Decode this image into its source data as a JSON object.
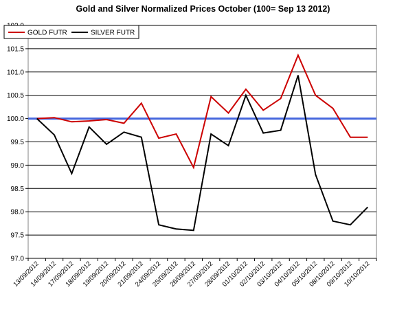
{
  "chart_data": {
    "type": "line",
    "title": "Gold and  Silver Normalized Prices October (100= Sep 13 2012)",
    "xlabel": "",
    "ylabel": "",
    "ylim": [
      97.0,
      102.0
    ],
    "y_ticks": [
      "97.0",
      "97.5",
      "98.0",
      "98.5",
      "99.0",
      "99.5",
      "100.0",
      "100.5",
      "101.0",
      "101.5",
      "102.0"
    ],
    "grid": "horizontal",
    "legend_position": "top-left",
    "categories": [
      "13/09/2012",
      "14/09/2012",
      "17/09/2012",
      "18/09/2012",
      "19/09/2012",
      "20/09/2012",
      "21/09/2012",
      "24/09/2012",
      "25/09/2012",
      "26/09/2012",
      "27/09/2012",
      "28/09/2012",
      "01/10/2012",
      "02/10/2012",
      "03/10/2012",
      "04/10/2012",
      "05/10/2012",
      "08/10/2012",
      "09/10/2012",
      "10/10/2012"
    ],
    "series": [
      {
        "name": "GOLD  FUTR",
        "color": "#cc0000",
        "values": [
          100.0,
          100.02,
          99.93,
          99.95,
          99.98,
          99.9,
          100.33,
          99.58,
          99.67,
          98.95,
          100.47,
          100.12,
          100.63,
          100.18,
          100.43,
          101.36,
          100.5,
          100.22,
          99.6,
          99.6
        ]
      },
      {
        "name": "SILVER  FUTR",
        "color": "#000000",
        "values": [
          100.0,
          99.65,
          98.82,
          99.82,
          99.45,
          99.71,
          99.6,
          97.72,
          97.63,
          97.6,
          99.67,
          99.42,
          100.5,
          99.69,
          99.75,
          100.93,
          98.8,
          97.8,
          97.72,
          98.1
        ]
      }
    ],
    "reference_line": {
      "value": 100.0,
      "color": "#4466dd"
    }
  }
}
